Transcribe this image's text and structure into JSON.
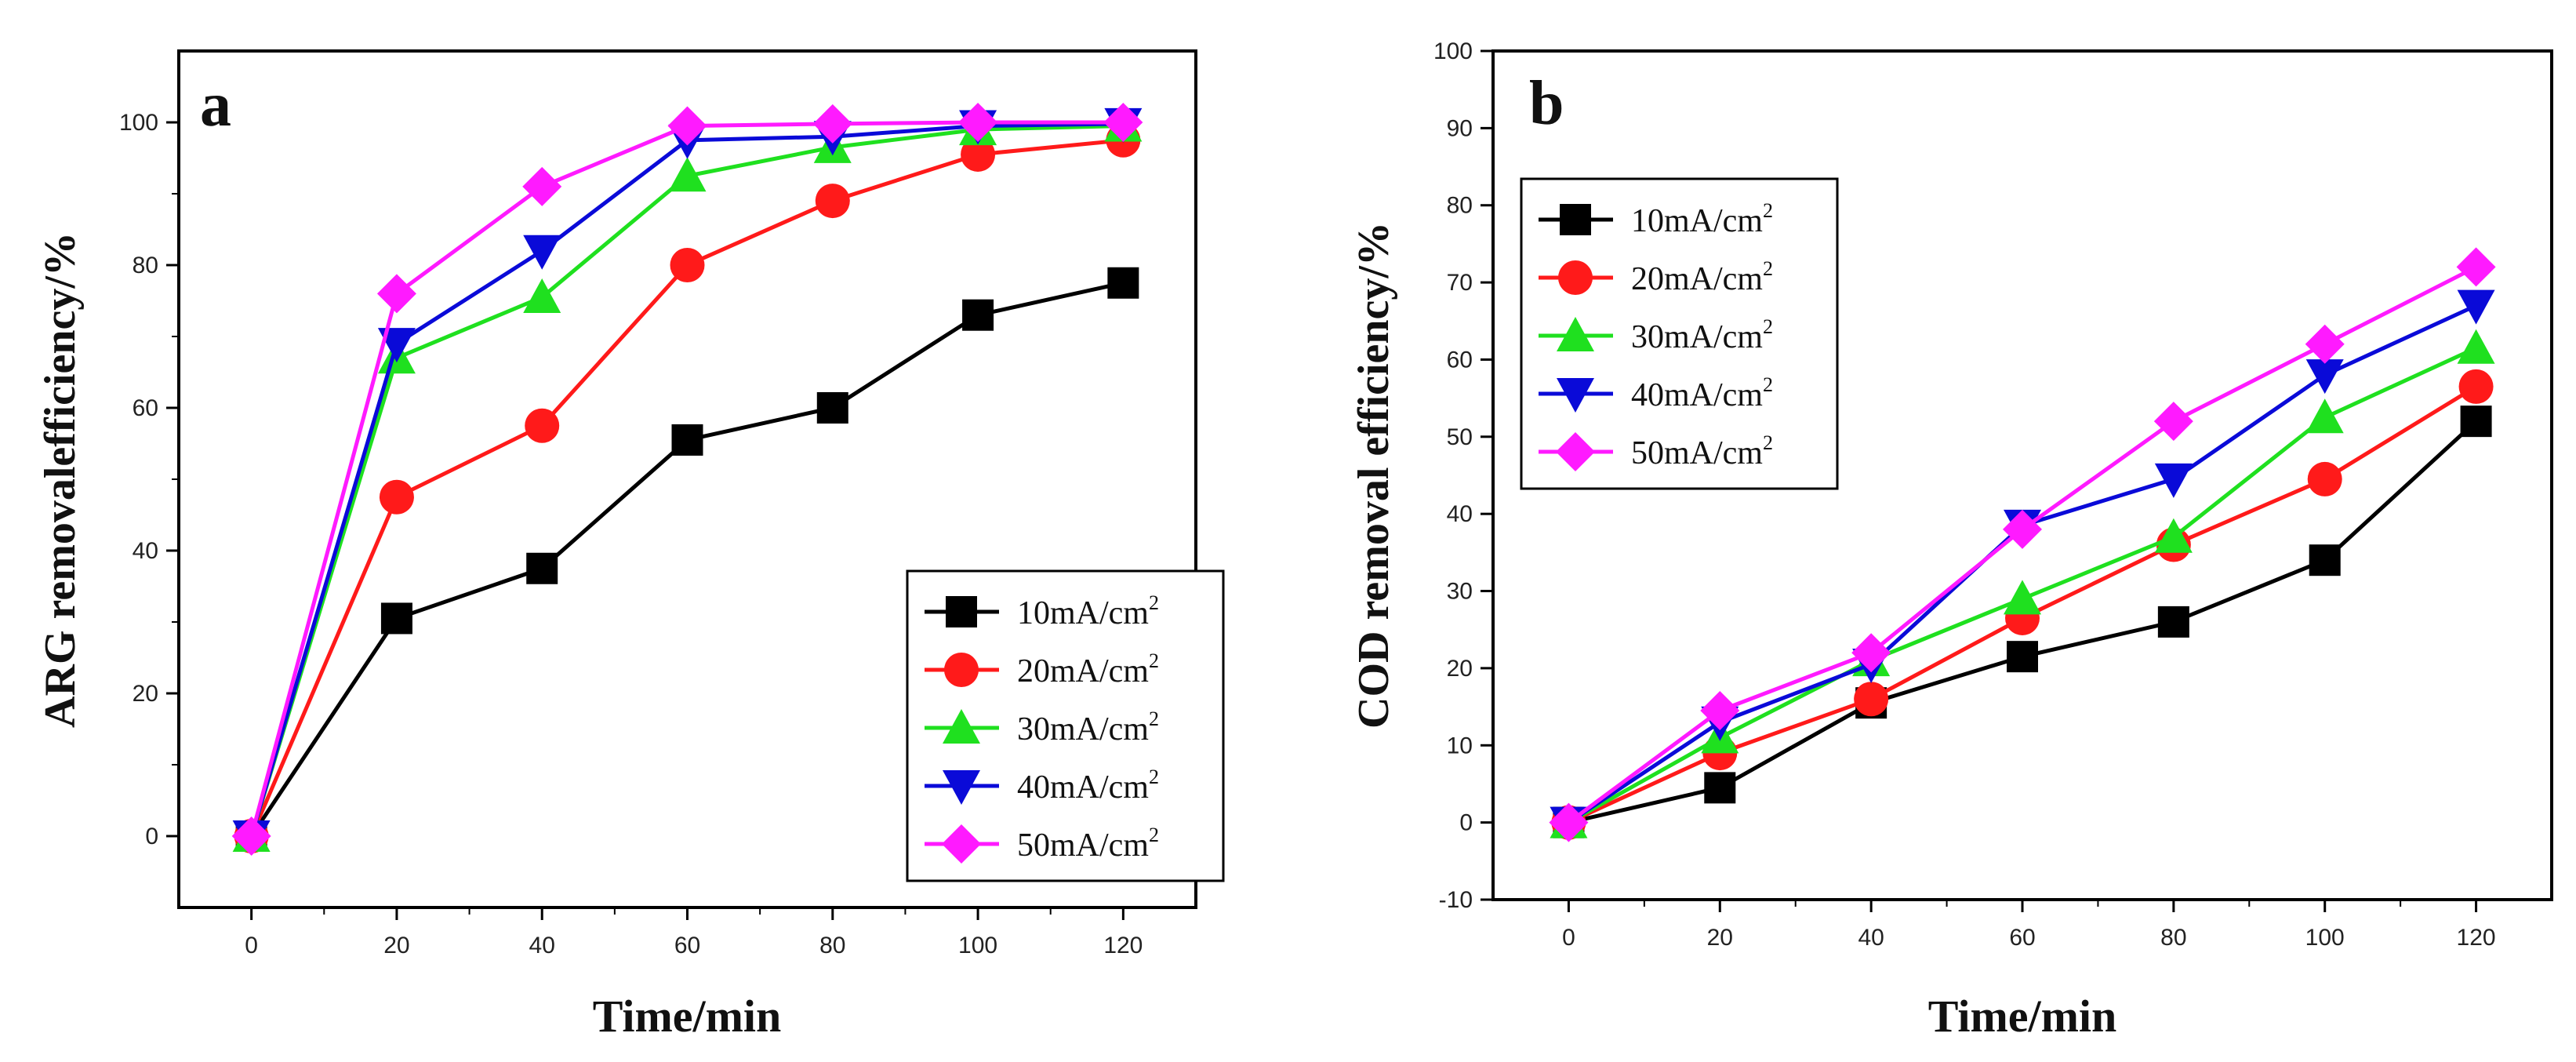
{
  "chart_data": [
    {
      "type": "line",
      "panel_label": "a",
      "xlabel": "Time/min",
      "ylabel": "ARG removalefficiency/%",
      "x": [
        0,
        20,
        40,
        60,
        80,
        100,
        120
      ],
      "xlim": [
        -10,
        130
      ],
      "ylim": [
        -10,
        110
      ],
      "xticks": [
        "0",
        "20",
        "40",
        "60",
        "80",
        "100",
        "120"
      ],
      "yticks": [
        "0",
        "20",
        "40",
        "60",
        "80",
        "100"
      ],
      "legend_position": "bottom-right",
      "series": [
        {
          "name": "10mA/cm",
          "unit_sup": "2",
          "color": "#000000",
          "marker": "square",
          "values": [
            0,
            30.5,
            37.5,
            55.5,
            60,
            73,
            77.5
          ]
        },
        {
          "name": "20mA/cm",
          "unit_sup": "2",
          "color": "#ff1a1a",
          "marker": "circle",
          "values": [
            0,
            47.5,
            57.5,
            80,
            89,
            95.5,
            97.5
          ]
        },
        {
          "name": "30mA/cm",
          "unit_sup": "2",
          "color": "#1fe01f",
          "marker": "triangle-up",
          "values": [
            0,
            67,
            75.5,
            92.5,
            96.5,
            99,
            99.5
          ]
        },
        {
          "name": "40mA/cm",
          "unit_sup": "2",
          "color": "#0a0ad8",
          "marker": "triangle-down",
          "values": [
            0,
            69,
            82,
            97.5,
            98,
            99.5,
            99.8
          ]
        },
        {
          "name": "50mA/cm",
          "unit_sup": "2",
          "color": "#ff1aff",
          "marker": "diamond",
          "values": [
            0,
            76,
            91,
            99.5,
            99.8,
            100,
            100
          ]
        }
      ]
    },
    {
      "type": "line",
      "panel_label": "b",
      "xlabel": "Time/min",
      "ylabel": "COD removal efficiency/%",
      "x": [
        0,
        20,
        40,
        60,
        80,
        100,
        120
      ],
      "xlim": [
        -10,
        130
      ],
      "ylim": [
        -10,
        100
      ],
      "xticks": [
        "0",
        "20",
        "40",
        "60",
        "80",
        "100",
        "120"
      ],
      "yticks": [
        "-10",
        "0",
        "10",
        "20",
        "30",
        "40",
        "50",
        "60",
        "70",
        "80",
        "90",
        "100"
      ],
      "legend_position": "top-left",
      "series": [
        {
          "name": "10mA/cm",
          "unit_sup": "2",
          "color": "#000000",
          "marker": "square",
          "values": [
            0,
            4.5,
            15.5,
            21.5,
            26,
            34,
            52
          ]
        },
        {
          "name": "20mA/cm",
          "unit_sup": "2",
          "color": "#ff1a1a",
          "marker": "circle",
          "values": [
            0,
            9,
            16,
            26.5,
            36,
            44.5,
            56.5
          ]
        },
        {
          "name": "30mA/cm",
          "unit_sup": "2",
          "color": "#1fe01f",
          "marker": "triangle-up",
          "values": [
            0,
            11,
            21,
            29,
            37,
            52.5,
            61.5
          ]
        },
        {
          "name": "40mA/cm",
          "unit_sup": "2",
          "color": "#0a0ad8",
          "marker": "triangle-down",
          "values": [
            0,
            13,
            20.5,
            38.5,
            44.5,
            58,
            67
          ]
        },
        {
          "name": "50mA/cm",
          "unit_sup": "2",
          "color": "#ff1aff",
          "marker": "diamond",
          "values": [
            0,
            14.5,
            22,
            38,
            52,
            62,
            72
          ]
        }
      ]
    }
  ]
}
